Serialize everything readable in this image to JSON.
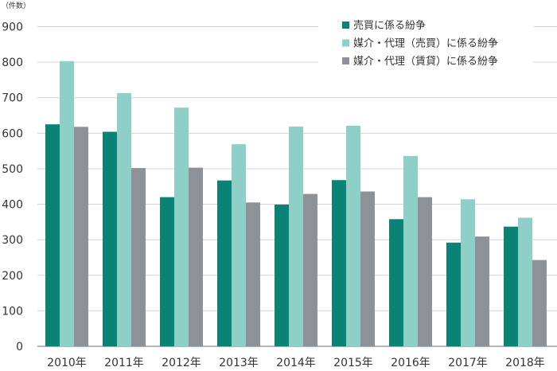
{
  "chart_data": {
    "type": "bar",
    "unit_label": "（件数）",
    "categories": [
      "2010年",
      "2011年",
      "2012年",
      "2013年",
      "2014年",
      "2015年",
      "2016年",
      "2017年",
      "2018年"
    ],
    "series": [
      {
        "name": "売買に係る紛争",
        "color": "#0a8276",
        "values": [
          625,
          604,
          420,
          467,
          399,
          468,
          358,
          292,
          337
        ]
      },
      {
        "name": "媒介・代理（売買）に係る紛争",
        "color": "#8fcfc8",
        "values": [
          803,
          713,
          672,
          569,
          619,
          621,
          536,
          414,
          362
        ]
      },
      {
        "name": "媒介・代理（賃貸）に係る紛争",
        "color": "#8c9297",
        "values": [
          618,
          502,
          503,
          405,
          429,
          436,
          420,
          309,
          243
        ]
      }
    ],
    "ylim": [
      0,
      900
    ],
    "yticks": [
      0,
      100,
      200,
      300,
      400,
      500,
      600,
      700,
      800,
      900
    ],
    "grid": true,
    "legend": "top-right"
  }
}
